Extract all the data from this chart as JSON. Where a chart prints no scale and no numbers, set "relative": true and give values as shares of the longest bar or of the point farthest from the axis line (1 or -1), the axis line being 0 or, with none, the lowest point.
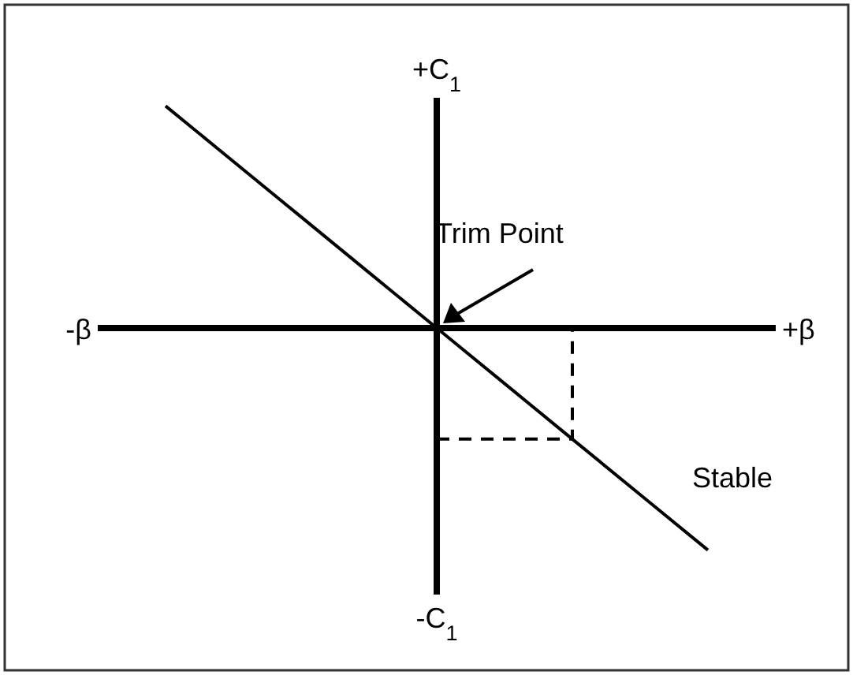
{
  "chart_data": {
    "type": "line",
    "relative": true,
    "categories": [
      null,
      null,
      null,
      null,
      null,
      null,
      null,
      null,
      null,
      null,
      null
    ],
    "series": [
      {
        "name": "Stable",
        "color": "#000000",
        "values": [
          null,
          1,
          0.75,
          0.5,
          0.25,
          0,
          -0.25,
          -0.5,
          -0.75,
          -1,
          null
        ]
      },
      {
        "type": "step",
        "color": "#000000",
        "line_style": "dashed",
        "values": [
          null,
          null,
          null,
          null,
          null,
          -0.5,
          null,
          0,
          null,
          null,
          null
        ]
      }
    ],
    "annotations": [
      "Trim Point",
      "+C$_{1}$",
      "-C$_{1}$",
      "-β",
      "+β"
    ]
  }
}
